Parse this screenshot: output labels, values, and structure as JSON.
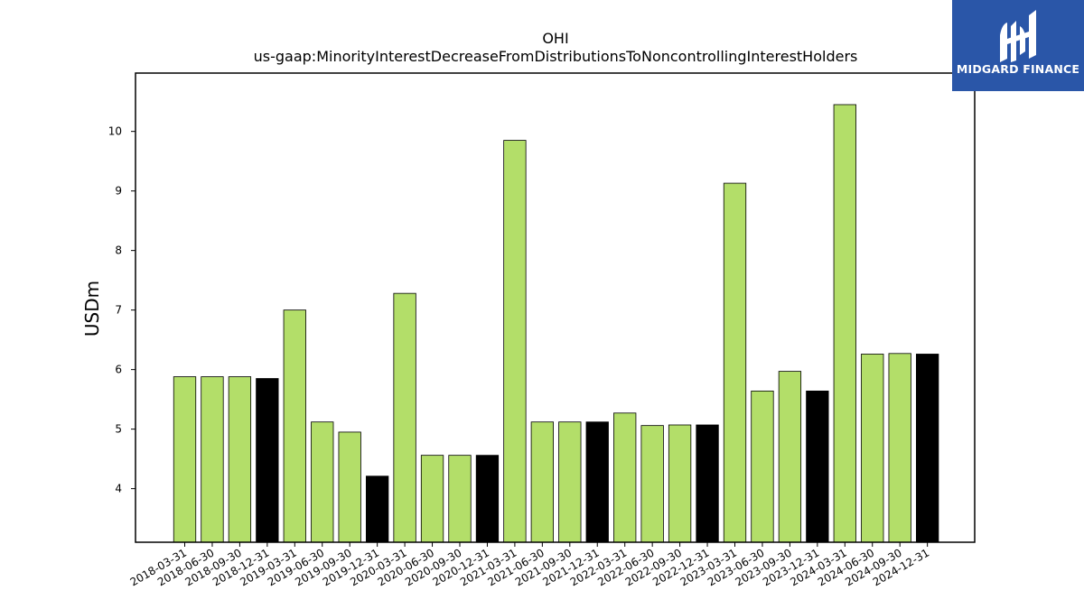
{
  "chart_data": {
    "type": "bar",
    "title": "OHI",
    "subtitle": "us-gaap:MinorityInterestDecreaseFromDistributionsToNoncontrollingInterestHolders",
    "xlabel": "",
    "ylabel": "USDm",
    "ylim": [
      3.1,
      10.98
    ],
    "yticks": [
      4,
      5,
      6,
      7,
      8,
      9,
      10
    ],
    "grid": false,
    "categories": [
      "2018-03-31",
      "2018-06-30",
      "2018-09-30",
      "2018-12-31",
      "2019-03-31",
      "2019-06-30",
      "2019-09-30",
      "2019-12-31",
      "2020-03-31",
      "2020-06-30",
      "2020-09-30",
      "2020-12-31",
      "2021-03-31",
      "2021-06-30",
      "2021-09-30",
      "2021-12-31",
      "2022-03-31",
      "2022-06-30",
      "2022-09-30",
      "2022-12-31",
      "2023-03-31",
      "2023-06-30",
      "2023-09-30",
      "2023-12-31",
      "2024-03-31",
      "2024-06-30",
      "2024-09-30",
      "2024-12-31"
    ],
    "values": [
      5.88,
      5.88,
      5.88,
      5.85,
      7.0,
      5.12,
      4.95,
      4.21,
      7.28,
      4.56,
      4.56,
      4.56,
      9.85,
      5.12,
      5.12,
      5.12,
      5.27,
      5.06,
      5.07,
      5.07,
      9.13,
      5.64,
      5.97,
      5.64,
      10.45,
      6.26,
      6.27,
      6.26
    ],
    "bar_colors": [
      "#b3de69",
      "#b3de69",
      "#b3de69",
      "#000000",
      "#b3de69",
      "#b3de69",
      "#b3de69",
      "#000000",
      "#b3de69",
      "#b3de69",
      "#b3de69",
      "#000000",
      "#b3de69",
      "#b3de69",
      "#b3de69",
      "#000000",
      "#b3de69",
      "#b3de69",
      "#b3de69",
      "#000000",
      "#b3de69",
      "#b3de69",
      "#b3de69",
      "#000000",
      "#b3de69",
      "#b3de69",
      "#b3de69",
      "#000000"
    ]
  },
  "logo": {
    "text": "MIDGARD FINANCE",
    "background": "#2a56a8"
  }
}
